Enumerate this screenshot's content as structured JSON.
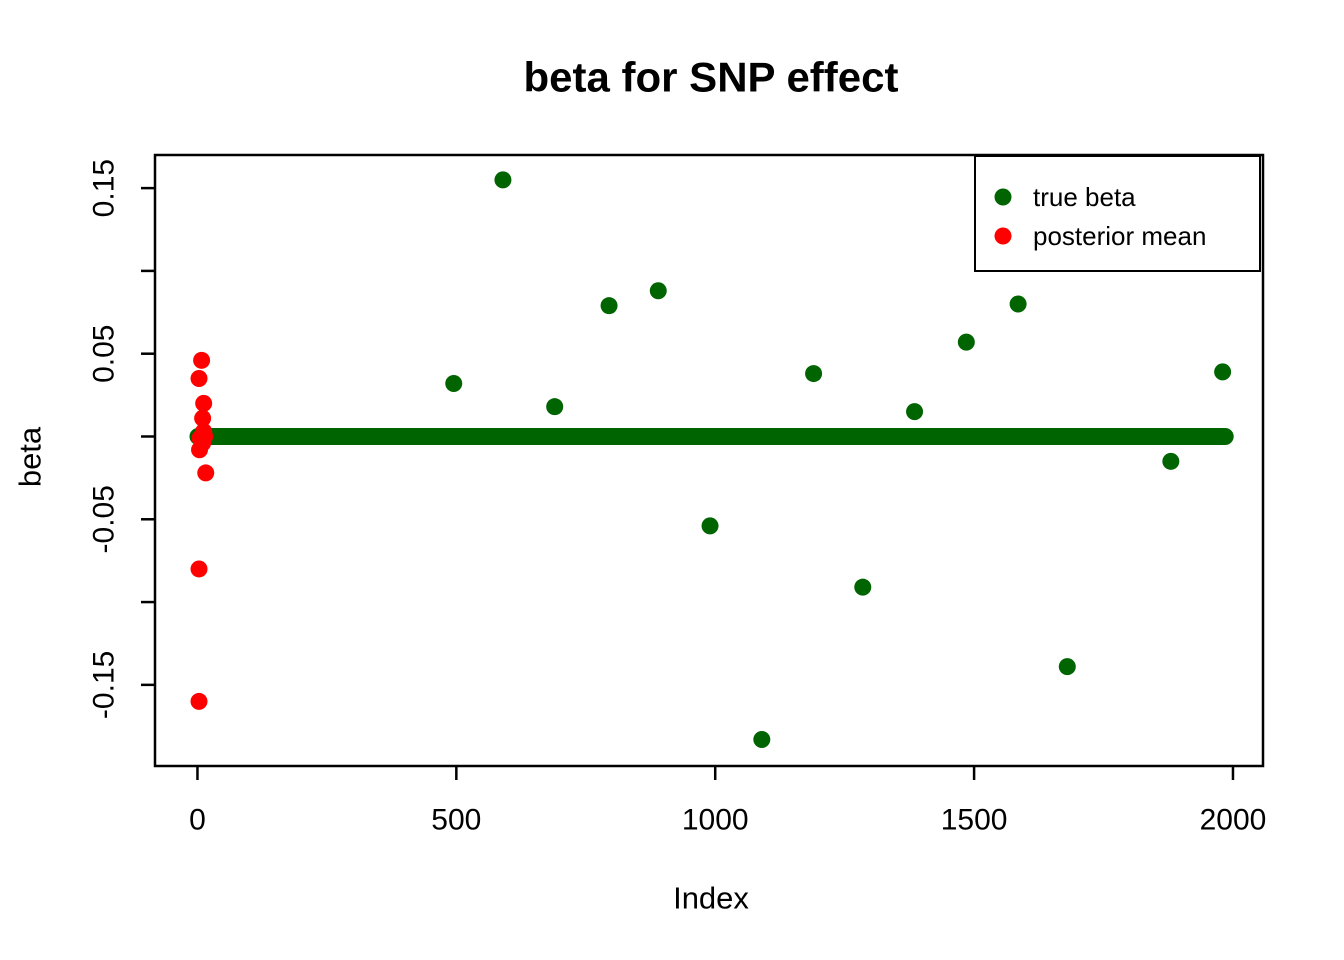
{
  "figure": {
    "title": "beta for SNP effect",
    "x_axis_label": "Index",
    "y_axis_label": "beta"
  },
  "colors": {
    "true_beta": "#006400",
    "posterior_mean": "#FF0000",
    "axis": "#000000",
    "text": "#000000",
    "background": "#FFFFFF",
    "legend_background": "#FFFFFF"
  },
  "legend": {
    "position": "top-right",
    "entries": [
      {
        "label": "true beta",
        "color": "#006400"
      },
      {
        "label": "posterior mean",
        "color": "#FF0000"
      }
    ]
  },
  "chart_data": {
    "type": "scatter",
    "title": "beta for SNP effect",
    "xlabel": "Index",
    "ylabel": "beta",
    "xlim": [
      -82,
      2058
    ],
    "ylim": [
      -0.199,
      0.17
    ],
    "grid": false,
    "legend_position": "top-right",
    "x_ticks": [
      {
        "value": 0,
        "label": "0"
      },
      {
        "value": 500,
        "label": "500"
      },
      {
        "value": 1000,
        "label": "1000"
      },
      {
        "value": 1500,
        "label": "1500"
      },
      {
        "value": 2000,
        "label": "2000"
      }
    ],
    "y_ticks": [
      {
        "value": 0.15,
        "label": "0.15"
      },
      {
        "value": 0.1,
        "label": ""
      },
      {
        "value": 0.05,
        "label": "0.05"
      },
      {
        "value": 0.0,
        "label": ""
      },
      {
        "value": -0.05,
        "label": "-0.05"
      },
      {
        "value": -0.1,
        "label": ""
      },
      {
        "value": -0.15,
        "label": "-0.15"
      }
    ],
    "series": [
      {
        "name": "true beta",
        "color": "#006400",
        "marker": "filled-circle",
        "points": [
          [
            495,
            0.032
          ],
          [
            590,
            0.155
          ],
          [
            690,
            0.018
          ],
          [
            795,
            0.079
          ],
          [
            890,
            0.088
          ],
          [
            990,
            -0.054
          ],
          [
            1090,
            -0.183
          ],
          [
            1190,
            0.038
          ],
          [
            1285,
            -0.091
          ],
          [
            1385,
            0.015
          ],
          [
            1485,
            0.057
          ],
          [
            1585,
            0.08
          ],
          [
            1680,
            -0.139
          ],
          [
            1880,
            -0.015
          ],
          [
            1980,
            0.039
          ]
        ],
        "zero_band": {
          "from_x": 1,
          "to_x": 1985,
          "value": 0.0
        }
      },
      {
        "name": "posterior mean",
        "color": "#FF0000",
        "marker": "filled-circle",
        "points": [
          [
            8,
            0.046
          ],
          [
            3,
            0.035
          ],
          [
            12,
            0.02
          ],
          [
            10,
            0.011
          ],
          [
            12,
            0.003
          ],
          [
            5,
            -0.001
          ],
          [
            14,
            0.0
          ],
          [
            10,
            -0.004
          ],
          [
            4,
            -0.008
          ],
          [
            16,
            -0.022
          ],
          [
            3,
            -0.08
          ],
          [
            3,
            -0.16
          ]
        ]
      }
    ]
  }
}
